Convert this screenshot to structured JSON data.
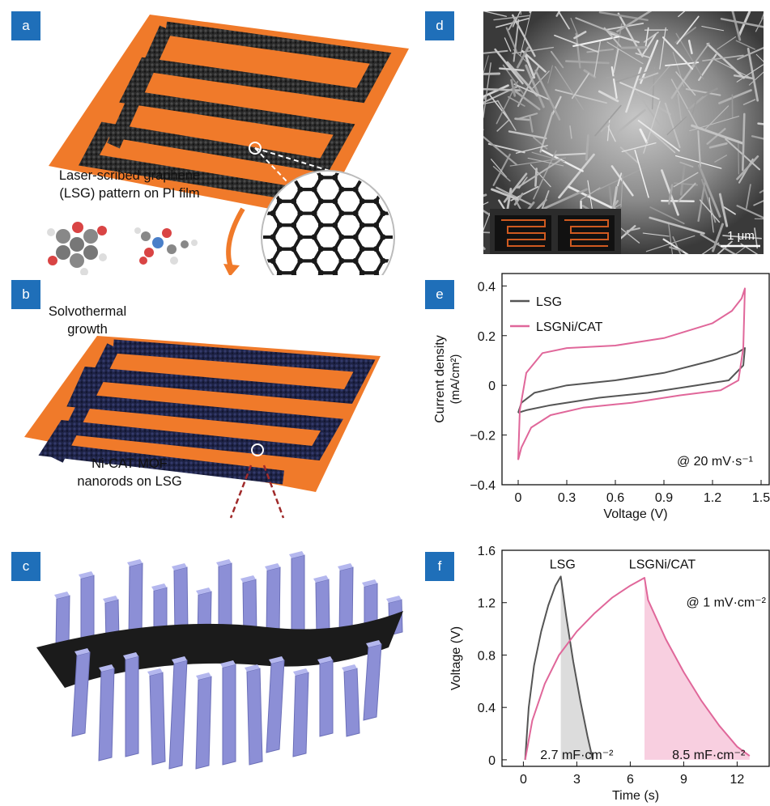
{
  "panels": {
    "a": {
      "label": "a",
      "caption_line1": "Laser-scribed graphene",
      "caption_line2": "(LSG) pattern on PI film"
    },
    "b": {
      "label": "b",
      "caption_top_line1": "Solvothermal",
      "caption_top_line2": "growth",
      "caption_line1": "Ni-CAT MOF",
      "caption_line2": "nanorods on LSG"
    },
    "c": {
      "label": "c"
    },
    "d": {
      "label": "d",
      "scale_bar": "1 μm"
    },
    "e": {
      "label": "e"
    },
    "f": {
      "label": "f"
    }
  },
  "colors": {
    "label_bg": "#1f6fb9",
    "orange": "#f07a2a",
    "lsg": "#555555",
    "lsgni": "#e0679a",
    "rod": "#8c8fd6"
  },
  "chart_data": [
    {
      "type": "line",
      "panel": "e",
      "xlabel": "Voltage (V)",
      "ylabel": "Current density",
      "ylabel_unit": "(mA/cm²)",
      "xlim": [
        -0.1,
        1.55
      ],
      "ylim": [
        -0.4,
        0.45
      ],
      "xticks": [
        "0",
        "0.3",
        "0.6",
        "0.9",
        "1.2",
        "1.5"
      ],
      "xtick_values": [
        0,
        0.3,
        0.6,
        0.9,
        1.2,
        1.5
      ],
      "yticks": [
        "0.4",
        "0.2",
        "0",
        "−0.2",
        "−0.4"
      ],
      "ytick_values": [
        0.4,
        0.2,
        0,
        -0.2,
        -0.4
      ],
      "annotation": "@ 20 mV·s⁻¹",
      "legend_position": "top-left",
      "series": [
        {
          "name": "LSG",
          "color": "#555555",
          "x": [
            0,
            0.02,
            0.1,
            0.3,
            0.6,
            0.9,
            1.2,
            1.35,
            1.4,
            1.39,
            1.3,
            1.1,
            0.8,
            0.5,
            0.2,
            0.05,
            0
          ],
          "y": [
            -0.11,
            -0.07,
            -0.03,
            0.0,
            0.02,
            0.05,
            0.1,
            0.13,
            0.15,
            0.08,
            0.02,
            0.0,
            -0.03,
            -0.05,
            -0.08,
            -0.1,
            -0.11
          ]
        },
        {
          "name": "LSGNi/CAT",
          "color": "#e0679a",
          "x": [
            0,
            0.01,
            0.05,
            0.15,
            0.3,
            0.6,
            0.9,
            1.2,
            1.32,
            1.38,
            1.4,
            1.39,
            1.36,
            1.25,
            1.0,
            0.7,
            0.4,
            0.2,
            0.08,
            0.02,
            0
          ],
          "y": [
            -0.3,
            -0.1,
            0.05,
            0.13,
            0.15,
            0.16,
            0.19,
            0.25,
            0.3,
            0.35,
            0.39,
            0.15,
            0.02,
            -0.02,
            -0.04,
            -0.07,
            -0.09,
            -0.12,
            -0.17,
            -0.25,
            -0.3
          ]
        }
      ]
    },
    {
      "type": "line",
      "panel": "f",
      "xlabel": "Time (s)",
      "ylabel": "Voltage (V)",
      "xlim": [
        -1.2,
        13.8
      ],
      "ylim": [
        -0.05,
        1.6
      ],
      "xticks": [
        "0",
        "3",
        "6",
        "9",
        "12"
      ],
      "xtick_values": [
        0,
        3,
        6,
        9,
        12
      ],
      "yticks": [
        "1.6",
        "1.2",
        "0.8",
        "0.4",
        "0"
      ],
      "ytick_values": [
        1.6,
        1.2,
        0.8,
        0.4,
        0
      ],
      "annotation": "@ 1 mV·cm⁻²",
      "series": [
        {
          "name": "LSG",
          "color": "#555555",
          "x": [
            0.1,
            0.3,
            0.6,
            1.0,
            1.4,
            1.8,
            2.1,
            2.4,
            2.8,
            3.2,
            3.6,
            3.9
          ],
          "y": [
            0,
            0.4,
            0.72,
            0.98,
            1.18,
            1.33,
            1.4,
            1.1,
            0.75,
            0.45,
            0.18,
            0
          ],
          "label": "LSG",
          "capacitance_label": "2.7 mF·cm⁻²"
        },
        {
          "name": "LSGNi/CAT",
          "color": "#e0679a",
          "x": [
            0.1,
            0.5,
            1.2,
            2.0,
            3.0,
            4.0,
            5.0,
            6.0,
            6.8,
            7.0,
            8.0,
            9.0,
            10.0,
            11.0,
            12.0,
            12.7
          ],
          "y": [
            0,
            0.3,
            0.58,
            0.8,
            0.98,
            1.12,
            1.24,
            1.33,
            1.39,
            1.22,
            0.92,
            0.67,
            0.45,
            0.26,
            0.1,
            0.03
          ],
          "label": "LSGNi/CAT",
          "capacitance_label": "8.5 mF·cm⁻²"
        }
      ]
    }
  ]
}
